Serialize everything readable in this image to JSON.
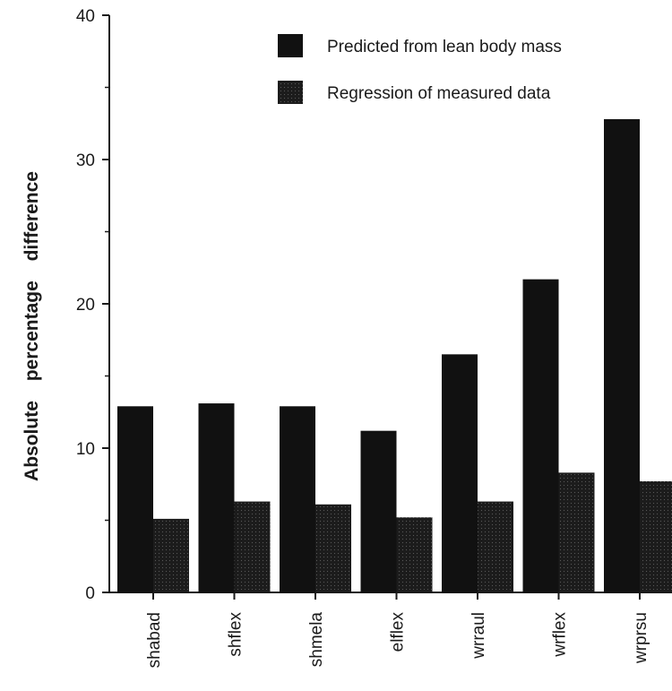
{
  "chart_data": {
    "type": "bar",
    "title": "",
    "xlabel": "",
    "ylabel": "Absolute percentage difference",
    "ylim": [
      0,
      40
    ],
    "yticks": [
      0,
      10,
      20,
      30,
      40
    ],
    "grid": false,
    "legend_position": "top-right",
    "categories": [
      "shabad",
      "shflex",
      "shmela",
      "elflex",
      "wrraul",
      "wrflex",
      "wrprsu"
    ],
    "series": [
      {
        "name": "Predicted from lean body mass",
        "color": "#111111",
        "values": [
          12.9,
          13.1,
          12.9,
          11.2,
          16.5,
          21.7,
          32.8
        ]
      },
      {
        "name": "Regression of measured data",
        "color": "#1c1c1c",
        "values": [
          5.1,
          6.3,
          6.1,
          5.2,
          6.3,
          8.3,
          7.7
        ]
      }
    ]
  }
}
